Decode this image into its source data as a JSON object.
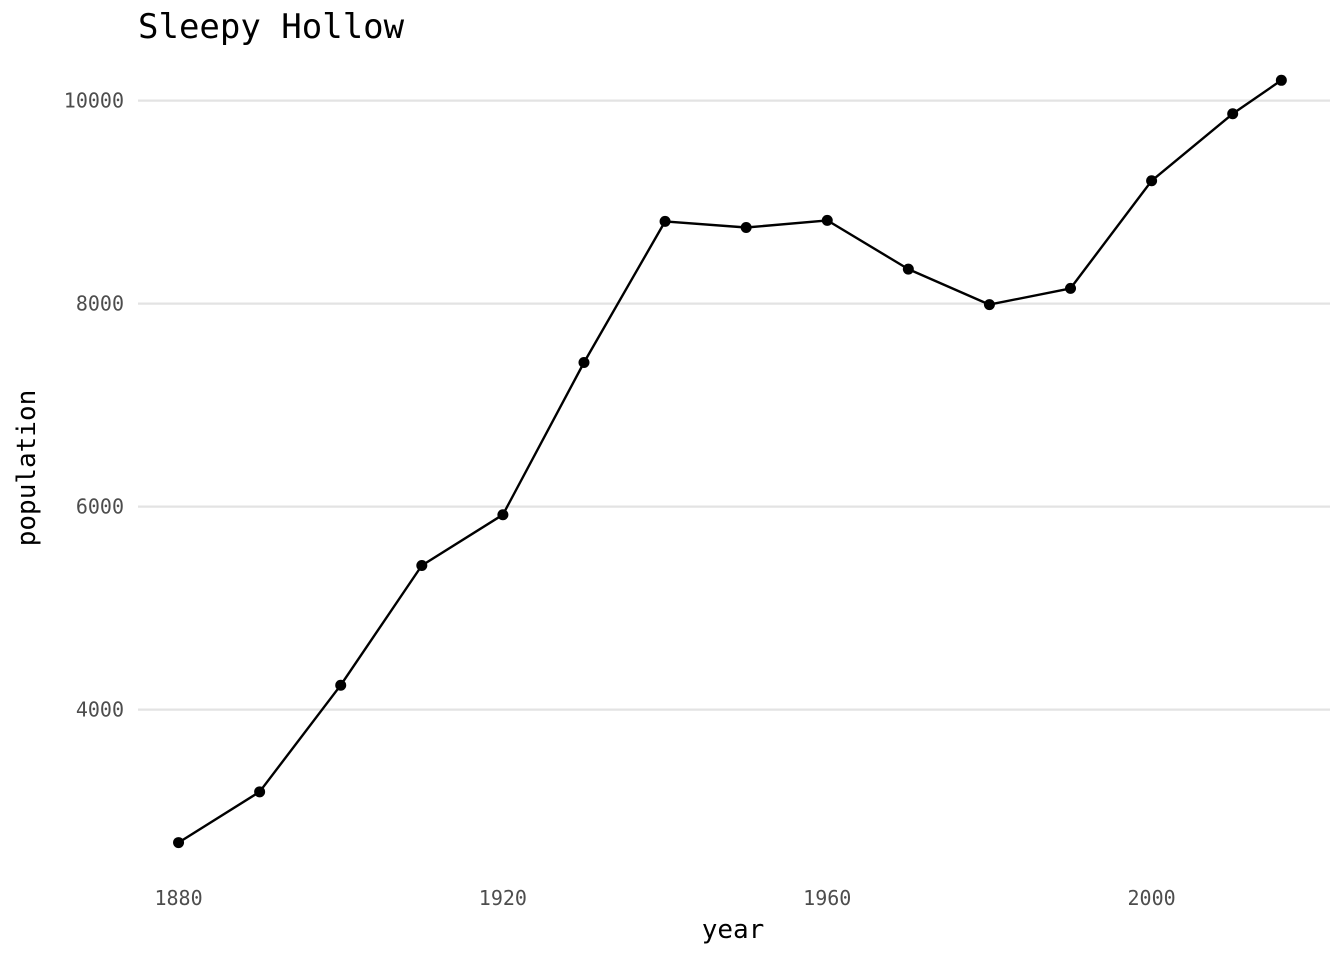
{
  "chart_data": {
    "type": "line",
    "title": "Sleepy Hollow",
    "xlabel": "year",
    "ylabel": "population",
    "xlim": [
      1875,
      2022
    ],
    "ylim": [
      2400,
      10400
    ],
    "x_ticks": [
      1880,
      1920,
      1960,
      2000
    ],
    "y_ticks": [
      4000,
      6000,
      8000,
      10000
    ],
    "grid": "horizontal major",
    "legend": "none",
    "line_color": "#000000",
    "grid_color": "#e3e3e3",
    "series": [
      {
        "x": [
          1880,
          1890,
          1900,
          1910,
          1920,
          1930,
          1940,
          1950,
          1960,
          1970,
          1980,
          1990,
          2000,
          2010,
          2016
        ],
        "values": [
          2690,
          3190,
          4240,
          5420,
          5920,
          7420,
          8810,
          8750,
          8820,
          8340,
          7990,
          8150,
          9210,
          9870,
          10200
        ]
      }
    ]
  }
}
